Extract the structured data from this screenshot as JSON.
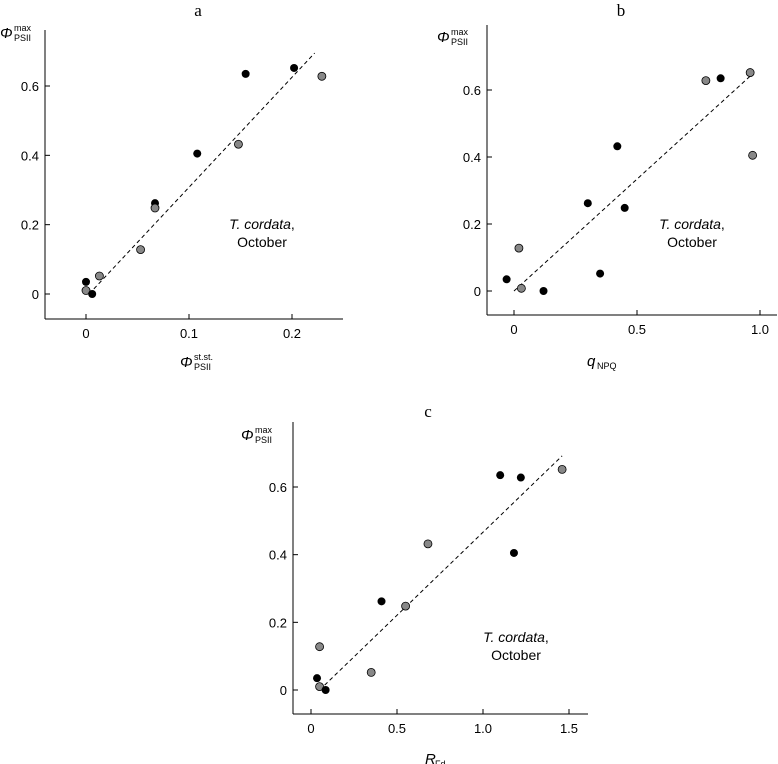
{
  "chart_data": [
    {
      "type": "scatter",
      "panel_letter": "a",
      "ylabel_main": "Φ",
      "ylabel_sup": "max",
      "ylabel_sub": "PSII",
      "xlabel_main": "Φ",
      "xlabel_sup": "st.st.",
      "xlabel_sub": "PSII",
      "xlim": [
        -0.04,
        0.25
      ],
      "ylim": [
        -0.08,
        0.77
      ],
      "xticks": [
        0,
        0.1,
        0.2
      ],
      "xtick_labels": [
        "0",
        "0.1",
        "0.2"
      ],
      "yticks": [
        0,
        0.2,
        0.4,
        0.6
      ],
      "ytick_labels": [
        "0",
        "0.2",
        "0.4",
        "0.6"
      ],
      "annotation_species": "T. cordata",
      "annotation_comma": ",",
      "annotation_month": "October",
      "points": [
        {
          "x": 0.0,
          "y": 0.035,
          "shade": "black"
        },
        {
          "x": 0.0,
          "y": 0.01,
          "shade": "gray"
        },
        {
          "x": 0.006,
          "y": 0.0,
          "shade": "black"
        },
        {
          "x": 0.013,
          "y": 0.052,
          "shade": "gray"
        },
        {
          "x": 0.053,
          "y": 0.128,
          "shade": "gray"
        },
        {
          "x": 0.067,
          "y": 0.262,
          "shade": "black"
        },
        {
          "x": 0.067,
          "y": 0.248,
          "shade": "gray"
        },
        {
          "x": 0.108,
          "y": 0.405,
          "shade": "black"
        },
        {
          "x": 0.148,
          "y": 0.432,
          "shade": "gray"
        },
        {
          "x": 0.155,
          "y": 0.635,
          "shade": "black"
        },
        {
          "x": 0.202,
          "y": 0.652,
          "shade": "black"
        },
        {
          "x": 0.229,
          "y": 0.628,
          "shade": "gray"
        }
      ],
      "fit_line": {
        "x": [
          0.003,
          0.222
        ],
        "y": [
          0.0,
          0.695
        ]
      }
    },
    {
      "type": "scatter",
      "panel_letter": "b",
      "ylabel_main": "Φ",
      "ylabel_sup": "max",
      "ylabel_sub": "PSII",
      "xlabel_main": "q",
      "xlabel_sup": "",
      "xlabel_sub": "NPQ",
      "xlim": [
        -0.08,
        1.06
      ],
      "ylim": [
        -0.08,
        0.79
      ],
      "xticks": [
        0,
        0.5,
        1.0
      ],
      "xtick_labels": [
        "0",
        "0.5",
        "1.0"
      ],
      "yticks": [
        0,
        0.2,
        0.4,
        0.6
      ],
      "ytick_labels": [
        "0",
        "0.2",
        "0.4",
        "0.6"
      ],
      "annotation_species": "T. cordata",
      "annotation_comma": ",",
      "annotation_month": "October",
      "points": [
        {
          "x": -0.03,
          "y": 0.035,
          "shade": "black"
        },
        {
          "x": 0.02,
          "y": 0.128,
          "shade": "gray"
        },
        {
          "x": 0.03,
          "y": 0.008,
          "shade": "gray"
        },
        {
          "x": 0.12,
          "y": 0.0,
          "shade": "black"
        },
        {
          "x": 0.3,
          "y": 0.262,
          "shade": "black"
        },
        {
          "x": 0.35,
          "y": 0.052,
          "shade": "black"
        },
        {
          "x": 0.42,
          "y": 0.432,
          "shade": "black"
        },
        {
          "x": 0.45,
          "y": 0.248,
          "shade": "black"
        },
        {
          "x": 0.78,
          "y": 0.628,
          "shade": "gray"
        },
        {
          "x": 0.84,
          "y": 0.635,
          "shade": "black"
        },
        {
          "x": 0.96,
          "y": 0.652,
          "shade": "gray"
        },
        {
          "x": 0.97,
          "y": 0.405,
          "shade": "gray"
        }
      ],
      "fit_line": {
        "x": [
          0.0,
          0.97
        ],
        "y": [
          0.0,
          0.648
        ]
      }
    },
    {
      "type": "scatter",
      "panel_letter": "c",
      "ylabel_main": "Φ",
      "ylabel_sup": "max",
      "ylabel_sub": "PSII",
      "xlabel_main": "R",
      "xlabel_sup": "",
      "xlabel_sub": "Fd",
      "xlim": [
        -0.1,
        1.6
      ],
      "ylim": [
        -0.08,
        0.79
      ],
      "xticks": [
        0,
        0.5,
        1.0,
        1.5
      ],
      "xtick_labels": [
        "0",
        "0.5",
        "1.0",
        "1.5"
      ],
      "yticks": [
        0,
        0.2,
        0.4,
        0.6
      ],
      "ytick_labels": [
        "0",
        "0.2",
        "0.4",
        "0.6"
      ],
      "annotation_species": "T. cordata",
      "annotation_comma": ",",
      "annotation_month": "October",
      "points": [
        {
          "x": 0.035,
          "y": 0.035,
          "shade": "black"
        },
        {
          "x": 0.05,
          "y": 0.128,
          "shade": "gray"
        },
        {
          "x": 0.05,
          "y": 0.01,
          "shade": "gray"
        },
        {
          "x": 0.085,
          "y": 0.0,
          "shade": "black"
        },
        {
          "x": 0.35,
          "y": 0.052,
          "shade": "gray"
        },
        {
          "x": 0.41,
          "y": 0.262,
          "shade": "black"
        },
        {
          "x": 0.55,
          "y": 0.248,
          "shade": "gray"
        },
        {
          "x": 0.68,
          "y": 0.432,
          "shade": "gray"
        },
        {
          "x": 1.1,
          "y": 0.635,
          "shade": "black"
        },
        {
          "x": 1.18,
          "y": 0.405,
          "shade": "black"
        },
        {
          "x": 1.22,
          "y": 0.628,
          "shade": "black"
        },
        {
          "x": 1.46,
          "y": 0.652,
          "shade": "gray"
        }
      ],
      "fit_line": {
        "x": [
          0.05,
          1.46
        ],
        "y": [
          0.0,
          0.692
        ]
      }
    }
  ],
  "colors": {
    "black_marker": "#000000",
    "gray_marker": "#888888",
    "axis": "#000000"
  }
}
